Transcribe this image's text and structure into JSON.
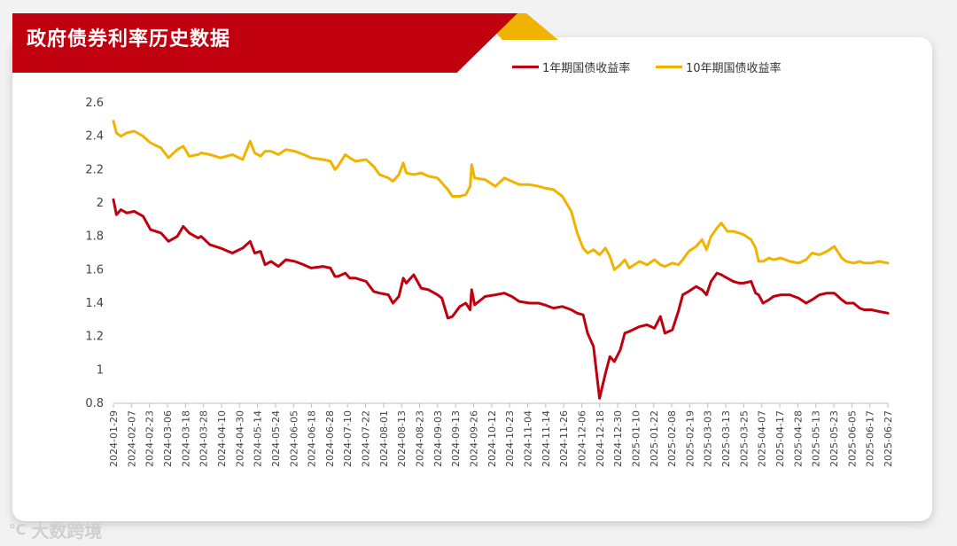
{
  "header": {
    "title": "政府债券利率历史数据"
  },
  "watermark": {
    "text": "大数跨境"
  },
  "colors": {
    "one_year": "#c0000e",
    "ten_year": "#f0b400",
    "banner": "#c0000e"
  },
  "chart_data": {
    "type": "line",
    "title": "",
    "xlabel": "",
    "ylabel": "",
    "ylim": [
      0.8,
      2.6
    ],
    "yticks": [
      "0.8",
      "1",
      "1.2",
      "1.4",
      "1.6",
      "1.8",
      "2",
      "2.2",
      "2.4",
      "2.6"
    ],
    "ytick_values": [
      0.8,
      1.0,
      1.2,
      1.4,
      1.6,
      1.8,
      2.0,
      2.2,
      2.4,
      2.6
    ],
    "xlim": [
      "2024-01-29",
      "2025-07-03"
    ],
    "x_tick_labels": [
      "2024-01-29",
      "2024-02-07",
      "2024-02-23",
      "2024-03-06",
      "2024-03-18",
      "2024-03-28",
      "2024-04-10",
      "2024-04-30",
      "2024-05-14",
      "2024-05-24",
      "2024-06-05",
      "2024-06-18",
      "2024-06-28",
      "2024-07-10",
      "2024-07-22",
      "2024-08-01",
      "2024-08-13",
      "2024-08-23",
      "2024-09-03",
      "2024-09-13",
      "2024-09-26",
      "2024-10-12",
      "2024-10-23",
      "2024-11-04",
      "2024-11-14",
      "2024-11-26",
      "2024-12-06",
      "2024-12-18",
      "2024-12-30",
      "2025-01-10",
      "2025-01-22",
      "2025-02-08",
      "2025-02-19",
      "2025-03-03",
      "2025-03-13",
      "2025-03-25",
      "2025-04-07",
      "2025-04-17",
      "2025-04-28",
      "2025-05-13",
      "2025-05-23",
      "2025-06-05",
      "2025-06-17",
      "2025-06-27"
    ],
    "legend_position": "top-right",
    "grid": false,
    "series": [
      {
        "name": "1年期国债收益率",
        "color": "#c0000e",
        "points": [
          [
            "2024-01-29",
            2.02
          ],
          [
            "2024-01-31",
            1.93
          ],
          [
            "2024-02-03",
            1.96
          ],
          [
            "2024-02-07",
            1.94
          ],
          [
            "2024-02-12",
            1.95
          ],
          [
            "2024-02-18",
            1.92
          ],
          [
            "2024-02-23",
            1.84
          ],
          [
            "2024-03-01",
            1.82
          ],
          [
            "2024-03-06",
            1.77
          ],
          [
            "2024-03-12",
            1.8
          ],
          [
            "2024-03-16",
            1.86
          ],
          [
            "2024-03-20",
            1.82
          ],
          [
            "2024-03-26",
            1.79
          ],
          [
            "2024-03-28",
            1.8
          ],
          [
            "2024-04-03",
            1.75
          ],
          [
            "2024-04-10",
            1.73
          ],
          [
            "2024-04-18",
            1.7
          ],
          [
            "2024-04-25",
            1.73
          ],
          [
            "2024-04-30",
            1.77
          ],
          [
            "2024-05-03",
            1.7
          ],
          [
            "2024-05-07",
            1.71
          ],
          [
            "2024-05-10",
            1.63
          ],
          [
            "2024-05-14",
            1.65
          ],
          [
            "2024-05-19",
            1.62
          ],
          [
            "2024-05-24",
            1.66
          ],
          [
            "2024-05-30",
            1.65
          ],
          [
            "2024-06-05",
            1.63
          ],
          [
            "2024-06-10",
            1.61
          ],
          [
            "2024-06-18",
            1.62
          ],
          [
            "2024-06-23",
            1.61
          ],
          [
            "2024-06-26",
            1.56
          ],
          [
            "2024-06-28",
            1.56
          ],
          [
            "2024-07-03",
            1.58
          ],
          [
            "2024-07-06",
            1.55
          ],
          [
            "2024-07-10",
            1.55
          ],
          [
            "2024-07-17",
            1.53
          ],
          [
            "2024-07-22",
            1.47
          ],
          [
            "2024-07-26",
            1.46
          ],
          [
            "2024-08-01",
            1.45
          ],
          [
            "2024-08-04",
            1.4
          ],
          [
            "2024-08-08",
            1.44
          ],
          [
            "2024-08-11",
            1.55
          ],
          [
            "2024-08-13",
            1.52
          ],
          [
            "2024-08-18",
            1.57
          ],
          [
            "2024-08-23",
            1.49
          ],
          [
            "2024-08-28",
            1.48
          ],
          [
            "2024-09-03",
            1.45
          ],
          [
            "2024-09-06",
            1.43
          ],
          [
            "2024-09-10",
            1.31
          ],
          [
            "2024-09-13",
            1.32
          ],
          [
            "2024-09-18",
            1.38
          ],
          [
            "2024-09-22",
            1.4
          ],
          [
            "2024-09-25",
            1.36
          ],
          [
            "2024-09-26",
            1.48
          ],
          [
            "2024-09-28",
            1.39
          ],
          [
            "2024-10-05",
            1.44
          ],
          [
            "2024-10-12",
            1.45
          ],
          [
            "2024-10-18",
            1.46
          ],
          [
            "2024-10-23",
            1.44
          ],
          [
            "2024-10-28",
            1.41
          ],
          [
            "2024-11-04",
            1.4
          ],
          [
            "2024-11-10",
            1.4
          ],
          [
            "2024-11-14",
            1.39
          ],
          [
            "2024-11-20",
            1.37
          ],
          [
            "2024-11-26",
            1.38
          ],
          [
            "2024-12-02",
            1.36
          ],
          [
            "2024-12-06",
            1.34
          ],
          [
            "2024-12-10",
            1.33
          ],
          [
            "2024-12-13",
            1.22
          ],
          [
            "2024-12-17",
            1.14
          ],
          [
            "2024-12-21",
            0.83
          ],
          [
            "2024-12-25",
            0.98
          ],
          [
            "2024-12-28",
            1.08
          ],
          [
            "2024-12-31",
            1.05
          ],
          [
            "2025-01-04",
            1.12
          ],
          [
            "2025-01-07",
            1.22
          ],
          [
            "2025-01-10",
            1.23
          ],
          [
            "2025-01-17",
            1.26
          ],
          [
            "2025-01-22",
            1.27
          ],
          [
            "2025-01-27",
            1.25
          ],
          [
            "2025-01-31",
            1.32
          ],
          [
            "2025-02-03",
            1.22
          ],
          [
            "2025-02-08",
            1.24
          ],
          [
            "2025-02-12",
            1.35
          ],
          [
            "2025-02-15",
            1.45
          ],
          [
            "2025-02-19",
            1.47
          ],
          [
            "2025-02-24",
            1.5
          ],
          [
            "2025-02-28",
            1.48
          ],
          [
            "2025-03-03",
            1.45
          ],
          [
            "2025-03-06",
            1.53
          ],
          [
            "2025-03-10",
            1.58
          ],
          [
            "2025-03-13",
            1.57
          ],
          [
            "2025-03-17",
            1.55
          ],
          [
            "2025-03-21",
            1.53
          ],
          [
            "2025-03-25",
            1.52
          ],
          [
            "2025-03-28",
            1.52
          ],
          [
            "2025-04-02",
            1.53
          ],
          [
            "2025-04-05",
            1.46
          ],
          [
            "2025-04-07",
            1.45
          ],
          [
            "2025-04-10",
            1.4
          ],
          [
            "2025-04-14",
            1.42
          ],
          [
            "2025-04-17",
            1.44
          ],
          [
            "2025-04-22",
            1.45
          ],
          [
            "2025-04-28",
            1.45
          ],
          [
            "2025-05-04",
            1.43
          ],
          [
            "2025-05-09",
            1.4
          ],
          [
            "2025-05-13",
            1.42
          ],
          [
            "2025-05-18",
            1.45
          ],
          [
            "2025-05-23",
            1.46
          ],
          [
            "2025-05-28",
            1.46
          ],
          [
            "2025-06-02",
            1.42
          ],
          [
            "2025-06-05",
            1.4
          ],
          [
            "2025-06-10",
            1.4
          ],
          [
            "2025-06-14",
            1.37
          ],
          [
            "2025-06-17",
            1.36
          ],
          [
            "2025-06-22",
            1.36
          ],
          [
            "2025-06-27",
            1.35
          ],
          [
            "2025-07-03",
            1.34
          ]
        ]
      },
      {
        "name": "10年期国债收益率",
        "color": "#f0b400",
        "points": [
          [
            "2024-01-29",
            2.49
          ],
          [
            "2024-01-31",
            2.42
          ],
          [
            "2024-02-03",
            2.4
          ],
          [
            "2024-02-07",
            2.42
          ],
          [
            "2024-02-12",
            2.43
          ],
          [
            "2024-02-18",
            2.4
          ],
          [
            "2024-02-23",
            2.36
          ],
          [
            "2024-03-01",
            2.33
          ],
          [
            "2024-03-06",
            2.27
          ],
          [
            "2024-03-12",
            2.32
          ],
          [
            "2024-03-16",
            2.34
          ],
          [
            "2024-03-20",
            2.28
          ],
          [
            "2024-03-26",
            2.29
          ],
          [
            "2024-03-28",
            2.3
          ],
          [
            "2024-04-03",
            2.29
          ],
          [
            "2024-04-10",
            2.27
          ],
          [
            "2024-04-18",
            2.29
          ],
          [
            "2024-04-25",
            2.26
          ],
          [
            "2024-04-30",
            2.37
          ],
          [
            "2024-05-03",
            2.3
          ],
          [
            "2024-05-07",
            2.28
          ],
          [
            "2024-05-10",
            2.31
          ],
          [
            "2024-05-14",
            2.31
          ],
          [
            "2024-05-19",
            2.29
          ],
          [
            "2024-05-24",
            2.32
          ],
          [
            "2024-05-30",
            2.31
          ],
          [
            "2024-06-05",
            2.29
          ],
          [
            "2024-06-10",
            2.27
          ],
          [
            "2024-06-18",
            2.26
          ],
          [
            "2024-06-23",
            2.25
          ],
          [
            "2024-06-26",
            2.2
          ],
          [
            "2024-06-28",
            2.22
          ],
          [
            "2024-07-03",
            2.29
          ],
          [
            "2024-07-06",
            2.27
          ],
          [
            "2024-07-10",
            2.25
          ],
          [
            "2024-07-17",
            2.26
          ],
          [
            "2024-07-22",
            2.22
          ],
          [
            "2024-07-26",
            2.17
          ],
          [
            "2024-08-01",
            2.15
          ],
          [
            "2024-08-04",
            2.13
          ],
          [
            "2024-08-08",
            2.17
          ],
          [
            "2024-08-11",
            2.24
          ],
          [
            "2024-08-13",
            2.18
          ],
          [
            "2024-08-18",
            2.17
          ],
          [
            "2024-08-23",
            2.18
          ],
          [
            "2024-08-28",
            2.16
          ],
          [
            "2024-09-03",
            2.15
          ],
          [
            "2024-09-06",
            2.12
          ],
          [
            "2024-09-10",
            2.08
          ],
          [
            "2024-09-13",
            2.04
          ],
          [
            "2024-09-18",
            2.04
          ],
          [
            "2024-09-22",
            2.05
          ],
          [
            "2024-09-25",
            2.1
          ],
          [
            "2024-09-26",
            2.23
          ],
          [
            "2024-09-28",
            2.15
          ],
          [
            "2024-10-05",
            2.14
          ],
          [
            "2024-10-12",
            2.1
          ],
          [
            "2024-10-18",
            2.15
          ],
          [
            "2024-10-23",
            2.13
          ],
          [
            "2024-10-28",
            2.11
          ],
          [
            "2024-11-04",
            2.11
          ],
          [
            "2024-11-10",
            2.1
          ],
          [
            "2024-11-14",
            2.09
          ],
          [
            "2024-11-20",
            2.08
          ],
          [
            "2024-11-26",
            2.04
          ],
          [
            "2024-12-02",
            1.95
          ],
          [
            "2024-12-06",
            1.82
          ],
          [
            "2024-12-10",
            1.73
          ],
          [
            "2024-12-13",
            1.7
          ],
          [
            "2024-12-17",
            1.72
          ],
          [
            "2024-12-21",
            1.69
          ],
          [
            "2024-12-25",
            1.73
          ],
          [
            "2024-12-28",
            1.68
          ],
          [
            "2024-12-31",
            1.6
          ],
          [
            "2025-01-04",
            1.63
          ],
          [
            "2025-01-07",
            1.66
          ],
          [
            "2025-01-10",
            1.61
          ],
          [
            "2025-01-17",
            1.65
          ],
          [
            "2025-01-22",
            1.63
          ],
          [
            "2025-01-27",
            1.66
          ],
          [
            "2025-01-31",
            1.63
          ],
          [
            "2025-02-03",
            1.62
          ],
          [
            "2025-02-08",
            1.64
          ],
          [
            "2025-02-12",
            1.63
          ],
          [
            "2025-02-15",
            1.66
          ],
          [
            "2025-02-19",
            1.71
          ],
          [
            "2025-02-24",
            1.74
          ],
          [
            "2025-02-28",
            1.78
          ],
          [
            "2025-03-03",
            1.72
          ],
          [
            "2025-03-06",
            1.8
          ],
          [
            "2025-03-10",
            1.85
          ],
          [
            "2025-03-13",
            1.88
          ],
          [
            "2025-03-17",
            1.83
          ],
          [
            "2025-03-21",
            1.83
          ],
          [
            "2025-03-25",
            1.82
          ],
          [
            "2025-03-28",
            1.81
          ],
          [
            "2025-04-02",
            1.78
          ],
          [
            "2025-04-05",
            1.73
          ],
          [
            "2025-04-07",
            1.65
          ],
          [
            "2025-04-10",
            1.65
          ],
          [
            "2025-04-14",
            1.67
          ],
          [
            "2025-04-17",
            1.66
          ],
          [
            "2025-04-22",
            1.67
          ],
          [
            "2025-04-28",
            1.65
          ],
          [
            "2025-05-04",
            1.64
          ],
          [
            "2025-05-09",
            1.66
          ],
          [
            "2025-05-13",
            1.7
          ],
          [
            "2025-05-18",
            1.69
          ],
          [
            "2025-05-23",
            1.71
          ],
          [
            "2025-05-28",
            1.74
          ],
          [
            "2025-06-02",
            1.67
          ],
          [
            "2025-06-05",
            1.65
          ],
          [
            "2025-06-10",
            1.64
          ],
          [
            "2025-06-14",
            1.65
          ],
          [
            "2025-06-17",
            1.64
          ],
          [
            "2025-06-22",
            1.64
          ],
          [
            "2025-06-27",
            1.65
          ],
          [
            "2025-07-03",
            1.64
          ]
        ]
      }
    ]
  }
}
